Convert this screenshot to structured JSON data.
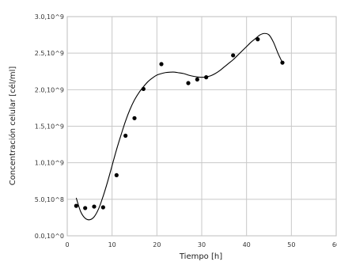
{
  "chart_data": {
    "type": "scatter",
    "title": "",
    "xlabel": "Tiempo [h]",
    "ylabel": "Concentración celular [cél/ml]",
    "xlim": [
      0,
      60
    ],
    "ylim": [
      0,
      3000000000
    ],
    "x_ticks": [
      "0",
      "10",
      "20",
      "30",
      "40",
      "50",
      "60"
    ],
    "y_ticks": [
      "0.0,10^0",
      "5.0,10^8",
      "1.0,10^9",
      "1.5,10^9",
      "2.0,10^9",
      "2.5,10^9",
      "3.0,10^9"
    ],
    "y_tick_values": [
      0,
      500000000,
      1000000000,
      1500000000,
      2000000000,
      2500000000,
      3000000000
    ],
    "grid": true,
    "legend": "none",
    "marker_color": "#000000",
    "series": [
      {
        "values_x": [
          2,
          4,
          6,
          8,
          11,
          13,
          15,
          17,
          21,
          27,
          29,
          31,
          37,
          42.5,
          48
        ],
        "values_y": [
          410000000,
          380000000,
          400000000,
          390000000,
          830000000,
          1370000000,
          1610000000,
          2010000000,
          2350000000,
          2090000000,
          2140000000,
          2170000000,
          2470000000,
          2690000000,
          2370000000
        ]
      }
    ],
    "trendline": {
      "style": "smooth",
      "x": [
        2,
        3,
        4,
        5,
        6,
        7,
        8,
        9,
        10,
        11,
        12,
        13,
        14,
        15,
        16,
        17,
        18,
        19,
        20,
        21,
        22,
        23,
        24,
        25,
        26,
        27,
        28,
        29,
        30,
        31,
        32,
        33,
        34,
        35,
        36,
        37,
        38,
        39,
        40,
        41,
        42,
        43,
        44,
        45,
        46,
        47,
        48
      ],
      "y": [
        520000000,
        330000000,
        240000000,
        220000000,
        260000000,
        370000000,
        540000000,
        740000000,
        960000000,
        1180000000,
        1380000000,
        1570000000,
        1730000000,
        1860000000,
        1960000000,
        2040000000,
        2110000000,
        2160000000,
        2200000000,
        2220000000,
        2235000000,
        2240000000,
        2240000000,
        2230000000,
        2220000000,
        2200000000,
        2185000000,
        2175000000,
        2170000000,
        2175000000,
        2190000000,
        2220000000,
        2260000000,
        2310000000,
        2360000000,
        2410000000,
        2470000000,
        2530000000,
        2590000000,
        2650000000,
        2700000000,
        2750000000,
        2770000000,
        2750000000,
        2650000000,
        2500000000,
        2370000000
      ]
    }
  }
}
